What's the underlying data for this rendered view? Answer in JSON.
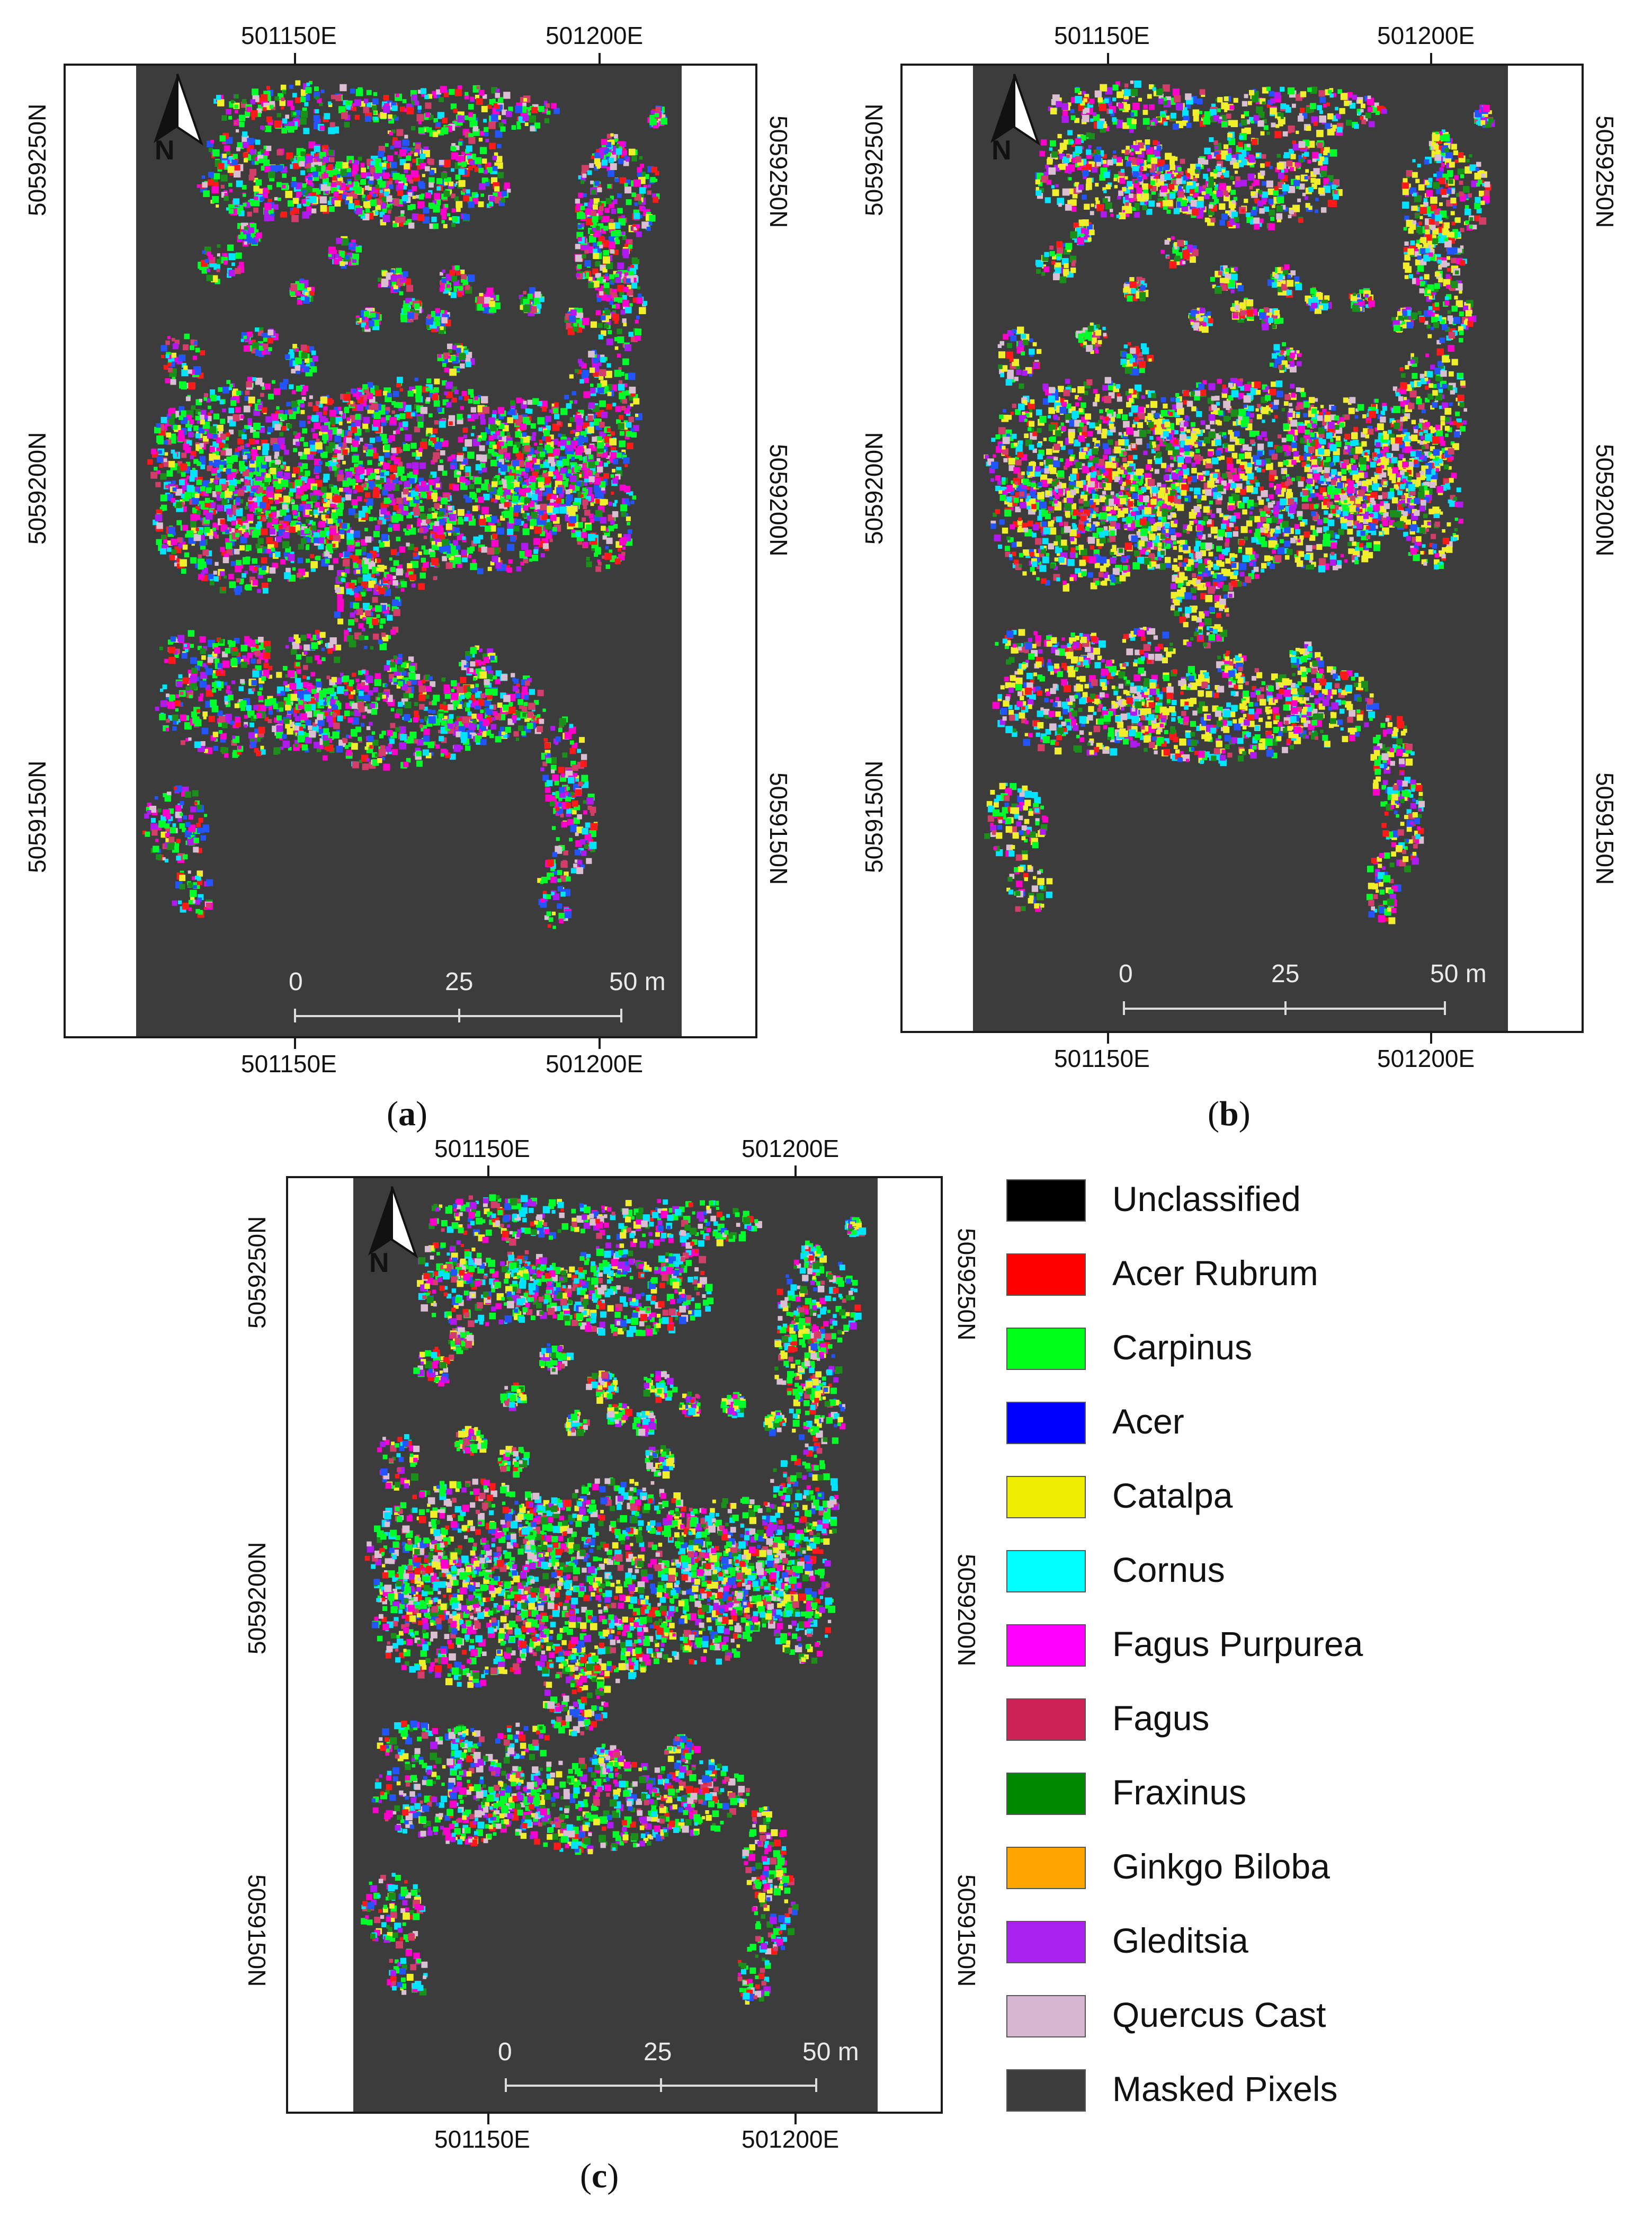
{
  "panels": [
    {
      "id": "a",
      "caption": "a",
      "x_labels": [
        "501150E",
        "501200E"
      ],
      "y_labels": [
        "5059250N",
        "5059200N",
        "5059150N"
      ],
      "north_label": "N",
      "scale": {
        "labels": [
          "0",
          "25",
          "50 m"
        ]
      },
      "palette_mix": [
        "#00ff2a",
        "#ff00cc",
        "#2255ff",
        "#b019f0",
        "#00e4ff",
        "#ff1a1a",
        "#f1ef2b",
        "#1a8f1a",
        "#d33d6a",
        "#dabfd3"
      ]
    },
    {
      "id": "b",
      "caption": "b",
      "x_labels": [
        "501150E",
        "501200E"
      ],
      "y_labels": [
        "5059250N",
        "5059200N",
        "5059150N"
      ],
      "north_label": "N",
      "scale": {
        "labels": [
          "0",
          "25",
          "50 m"
        ]
      },
      "palette_mix": [
        "#f1ef2b",
        "#00e4ff",
        "#00ff2a",
        "#dabfd3",
        "#1a8f1a",
        "#ff00cc",
        "#2255ff",
        "#ff1a1a",
        "#b019f0",
        "#d33d6a"
      ]
    },
    {
      "id": "c",
      "caption": "c",
      "x_labels": [
        "501150E",
        "501200E"
      ],
      "y_labels": [
        "5059250N",
        "5059200N",
        "5059150N"
      ],
      "north_label": "N",
      "scale": {
        "labels": [
          "0",
          "25",
          "50 m"
        ]
      },
      "palette_mix": [
        "#00ff2a",
        "#00e4ff",
        "#f1ef2b",
        "#dabfd3",
        "#1a8f1a",
        "#ff00cc",
        "#ff1a1a",
        "#2255ff",
        "#b019f0",
        "#d33d6a"
      ]
    }
  ],
  "legend": [
    {
      "label": "Unclassified",
      "color": "#000000"
    },
    {
      "label": "Acer Rubrum",
      "color": "#ff0000"
    },
    {
      "label": "Carpinus",
      "color": "#00ff19"
    },
    {
      "label": "Acer",
      "color": "#0000ff"
    },
    {
      "label": "Catalpa",
      "color": "#eeee00"
    },
    {
      "label": "Cornus",
      "color": "#00ffff"
    },
    {
      "label": "Fagus Purpurea",
      "color": "#ff00ff"
    },
    {
      "label": "Fagus",
      "color": "#cc2255"
    },
    {
      "label": "Fraxinus",
      "color": "#008800"
    },
    {
      "label": "Ginkgo Biloba",
      "color": "#ffa500"
    },
    {
      "label": "Gleditsia",
      "color": "#aa22ee"
    },
    {
      "label": "Quercus Cast",
      "color": "#d8b8d0"
    },
    {
      "label": "Masked Pixels",
      "color": "#3d3d3d"
    }
  ]
}
